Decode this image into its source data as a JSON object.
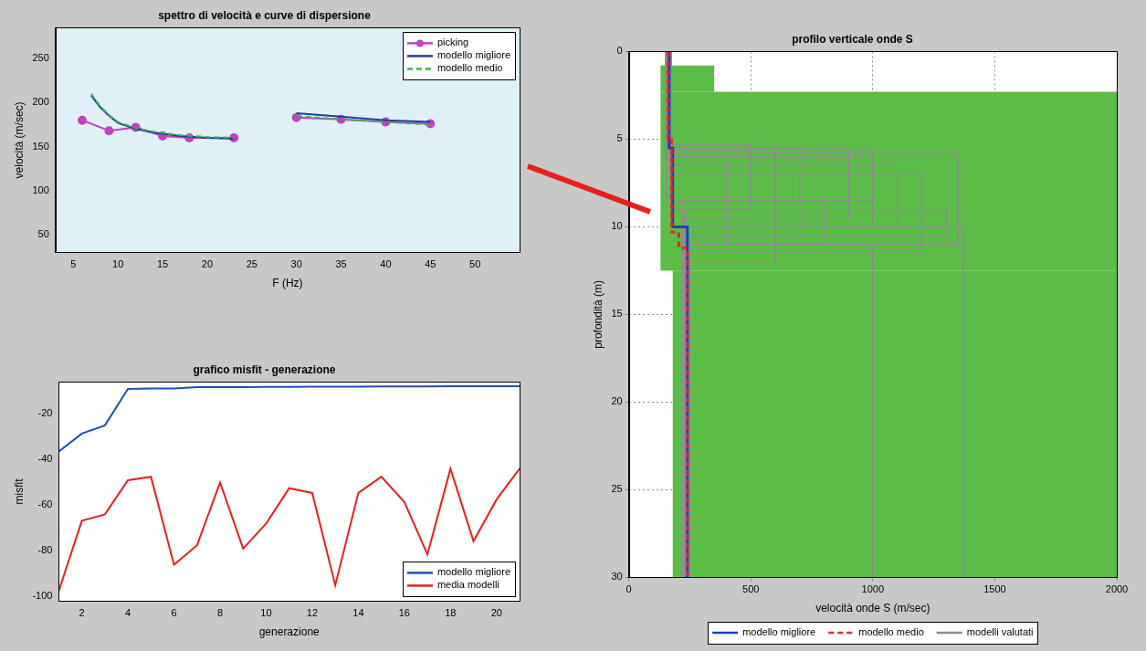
{
  "chart_data": [
    {
      "type": "line",
      "title": "spettro di velocità e curve di dispersione",
      "x_label": "F (Hz)",
      "y_label": "velocità (m/sec)",
      "xlim": [
        3,
        55
      ],
      "xticks": [
        5,
        10,
        15,
        20,
        25,
        30,
        35,
        40,
        45,
        50
      ],
      "ylim": [
        30,
        285
      ],
      "yticks": [
        50,
        100,
        150,
        200,
        250
      ],
      "grid": false,
      "legend": "upper right",
      "series": [
        {
          "name": "picking",
          "color": "#c341c3",
          "line_style": "solid",
          "marker": "circle",
          "x": [
            6,
            9,
            12,
            15,
            18,
            23,
            26.5,
            30,
            35,
            40,
            45
          ],
          "values": [
            180,
            168,
            172,
            162,
            160,
            160,
            null,
            183,
            181,
            178,
            176
          ]
        },
        {
          "name": "modello migliore",
          "color": "#1f3f9f",
          "line_style": "solid",
          "x": [
            7,
            8,
            9,
            10,
            12,
            14,
            17,
            20,
            23,
            26.5,
            30,
            35,
            40,
            45
          ],
          "values": [
            208,
            195,
            185,
            177,
            170,
            166,
            162,
            160,
            159,
            null,
            188,
            184,
            180,
            178
          ]
        },
        {
          "name": "modello medio",
          "color": "#39b54a",
          "line_style": "dashed",
          "x": [
            7,
            8,
            9,
            10,
            12,
            14,
            17,
            20,
            23,
            26.5,
            30,
            35,
            40,
            45
          ],
          "values": [
            210,
            196,
            186,
            178,
            171,
            167,
            163,
            161,
            160,
            null,
            185,
            181,
            178,
            175
          ]
        }
      ]
    },
    {
      "type": "line",
      "title": "grafico misfit - generazione",
      "x_label": "generazione",
      "y_label": "misfit",
      "x": [
        1,
        2,
        3,
        4,
        5,
        6,
        7,
        8,
        9,
        10,
        11,
        12,
        13,
        14,
        15,
        16,
        17,
        18,
        19,
        20,
        21
      ],
      "xlim": [
        1,
        21
      ],
      "xticks": [
        2,
        4,
        6,
        8,
        10,
        12,
        14,
        16,
        18,
        20
      ],
      "ylim": [
        -102,
        -6
      ],
      "yticks": [
        -100,
        -80,
        -60,
        -40,
        -20
      ],
      "grid": false,
      "legend": "lower right",
      "series": [
        {
          "name": "modello migliore",
          "color": "#1f4fb4",
          "line_style": "solid",
          "values": [
            -36.4,
            -28.6,
            -25,
            -9,
            -8.8,
            -8.8,
            -8.2,
            -8.2,
            -8.2,
            -8.1,
            -8.1,
            -8,
            -8,
            -8,
            -7.9,
            -7.9,
            -7.9,
            -7.8,
            -7.8,
            -7.8,
            -7.8
          ]
        },
        {
          "name": "media modelli",
          "color": "#e82020",
          "line_style": "solid",
          "values": [
            -97.5,
            -66.8,
            -64,
            -49,
            -47.5,
            -86,
            -77.5,
            -50,
            -79,
            -68,
            -52.5,
            -54.6,
            -95,
            -54.6,
            -47.5,
            -58.6,
            -81.5,
            -44,
            -75.7,
            -57.5,
            -44
          ]
        }
      ]
    },
    {
      "type": "line",
      "title": "profilo verticale onde S",
      "x_label": "velocità onde S (m/sec)",
      "y_label": "profondità (m)",
      "xlim": [
        0,
        2000
      ],
      "xticks": [
        0,
        500,
        1000,
        1500,
        2000
      ],
      "ylim": [
        30,
        0
      ],
      "yticks": [
        0,
        5,
        10,
        15,
        20,
        25,
        30
      ],
      "grid": true,
      "legend": "bottom",
      "search_area": {
        "color": "#5cbc48",
        "top": [
          0.8,
          2.3,
          12.5
        ],
        "bottom": [
          2.3,
          12.5,
          30
        ],
        "vmin": [
          130,
          130,
          180
        ],
        "vmax": [
          350,
          2000,
          2000
        ]
      },
      "series": [
        {
          "name": "modello migliore",
          "color": "#1f3fbf",
          "line_style": "solid",
          "tops": [
            0,
            5.5,
            10
          ],
          "vs": [
            165,
            180,
            240
          ]
        },
        {
          "name": "modello medio",
          "color": "#e8262a",
          "line_style": "dashed",
          "tops": [
            0,
            5,
            10.3,
            11.2
          ],
          "vs": [
            160,
            175,
            205,
            240
          ]
        },
        {
          "name": "modelli valutati",
          "color": "#8c8c8c",
          "line_style": "solid",
          "profiles": [
            {
              "tops": [
                0,
                5.5,
                9.5
              ],
              "vs": [
                160,
                900,
                230
              ]
            },
            {
              "tops": [
                0,
                5.8,
                11
              ],
              "vs": [
                170,
                1350,
                240
              ]
            },
            {
              "tops": [
                0,
                6,
                8.5
              ],
              "vs": [
                150,
                1000,
                220
              ]
            },
            {
              "tops": [
                0,
                5.5,
                10.5
              ],
              "vs": [
                175,
                700,
                250
              ]
            },
            {
              "tops": [
                0,
                7,
                11.5
              ],
              "vs": [
                165,
                1200,
                245
              ]
            },
            {
              "tops": [
                0,
                5.3,
                9
              ],
              "vs": [
                160,
                500,
                235
              ]
            },
            {
              "tops": [
                0,
                6.5,
                10
              ],
              "vs": [
                170,
                1100,
                240
              ]
            },
            {
              "tops": [
                0,
                8.5,
                11
              ],
              "vs": [
                155,
                800,
                230
              ]
            },
            {
              "tops": [
                0,
                5.5,
                12
              ],
              "vs": [
                165,
                600,
                250
              ]
            },
            {
              "tops": [
                0,
                9,
                10.5
              ],
              "vs": [
                170,
                1300,
                240
              ]
            },
            {
              "tops": [
                0,
                5.6,
                10
              ],
              "vs": [
                160,
                1000,
                1370
              ]
            },
            {
              "tops": [
                0,
                6,
                11
              ],
              "vs": [
                170,
                400,
                1000
              ]
            }
          ]
        }
      ]
    }
  ]
}
